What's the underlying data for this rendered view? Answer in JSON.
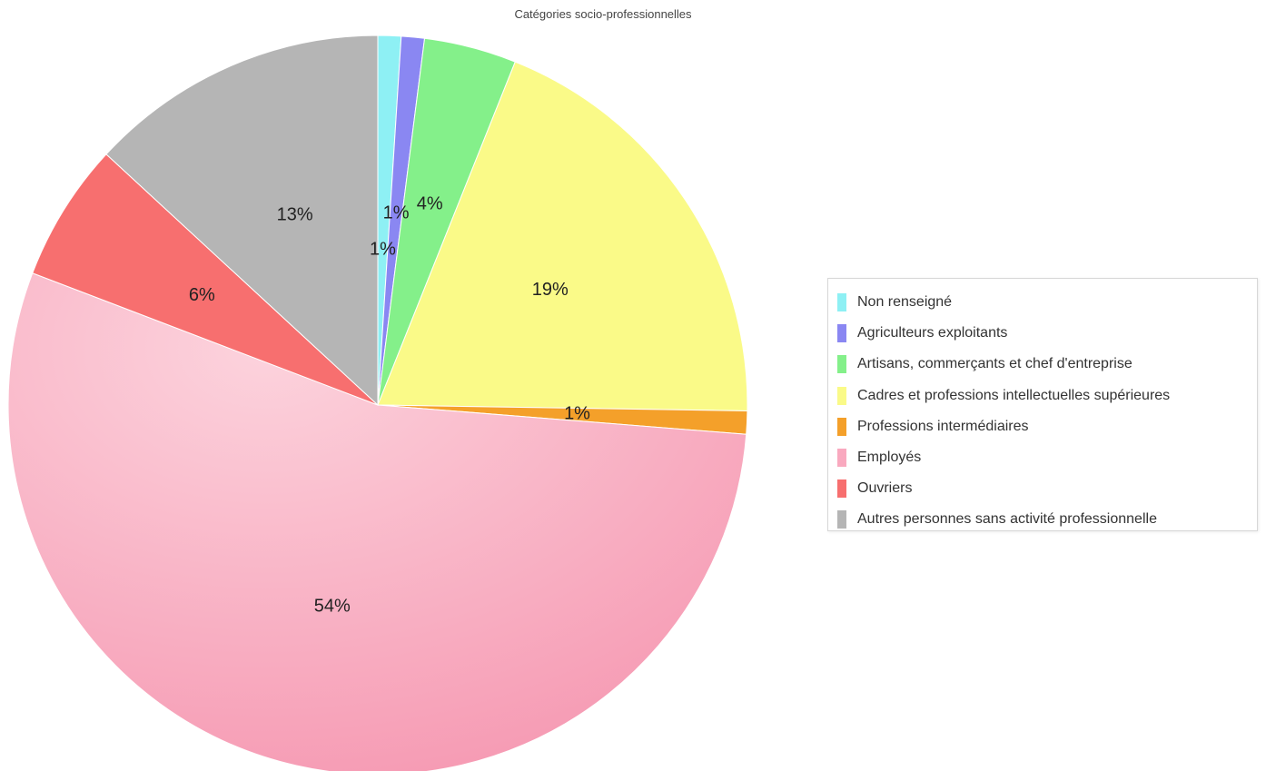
{
  "chart_data": {
    "type": "pie",
    "title": "Catégories socio-professionnelles",
    "legend_position": "right",
    "start_angle": "top",
    "direction": "clockwise",
    "slices": [
      {
        "label": "Non renseigné",
        "value": 1,
        "value_label": "1%",
        "color": "#8ef0f4"
      },
      {
        "label": "Agriculteurs exploitants",
        "value": 1,
        "value_label": "1%",
        "color": "#8a87f2"
      },
      {
        "label": "Artisans, commerçants et chef d'entreprise",
        "value": 4,
        "value_label": "4%",
        "color": "#84f08a"
      },
      {
        "label": "Cadres et professions intellectuelles supérieures",
        "value": 19,
        "value_label": "19%",
        "color": "#fafa88"
      },
      {
        "label": "Professions intermédiaires",
        "value": 1,
        "value_label": "1%",
        "color": "#f4a02a"
      },
      {
        "label": "Employés",
        "value": 54,
        "value_label": "54%",
        "color": "#f9a9bf"
      },
      {
        "label": "Ouvriers",
        "value": 6,
        "value_label": "6%",
        "color": "#f76f6f"
      },
      {
        "label": "Autres personnes sans activité professionnelle",
        "value": 13,
        "value_label": "13%",
        "color": "#b5b5b5"
      }
    ]
  }
}
